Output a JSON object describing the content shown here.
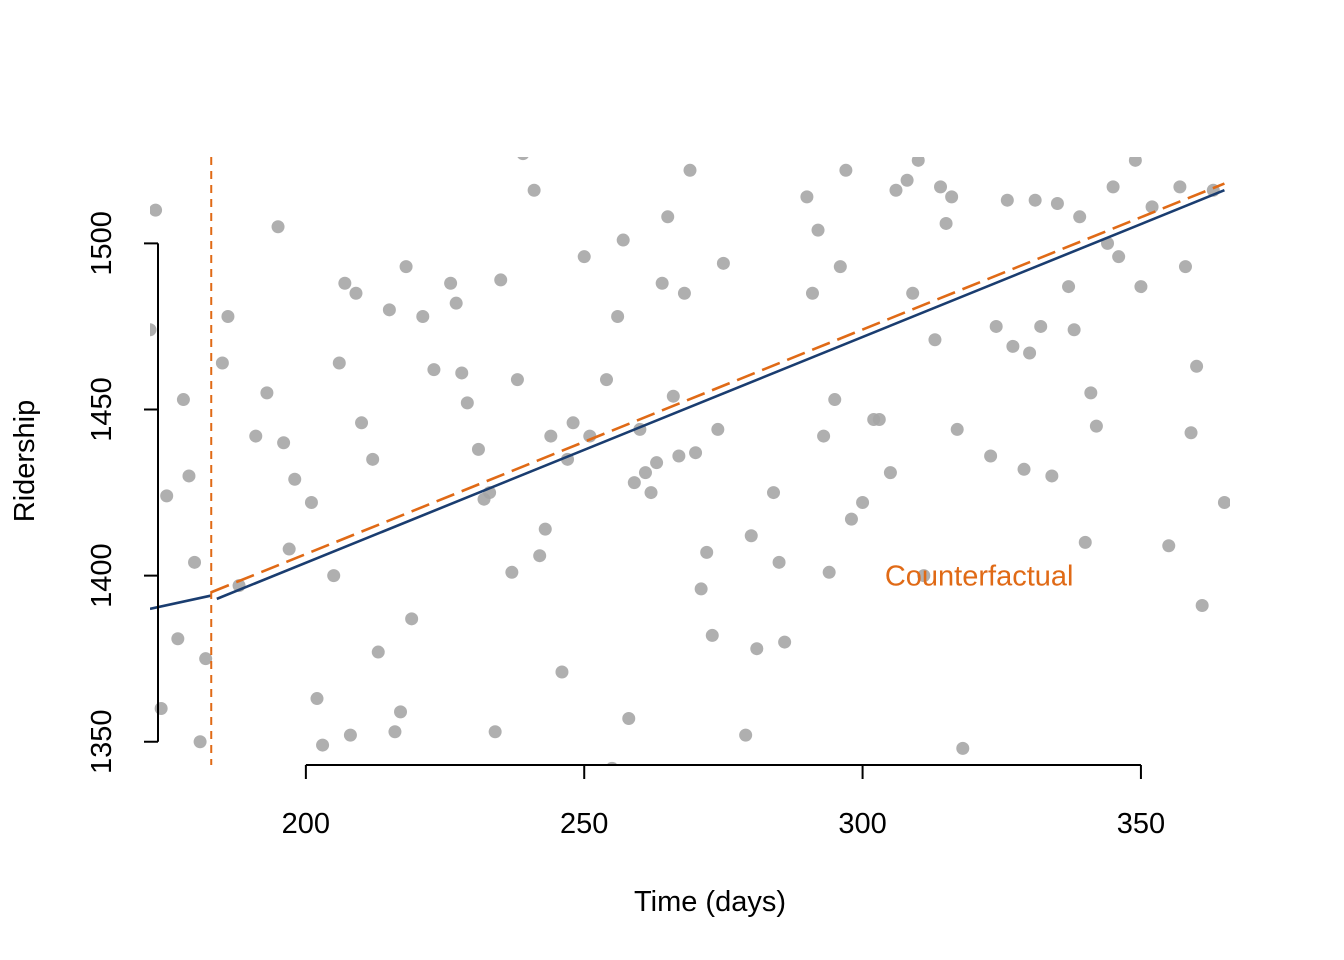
{
  "chart_data": {
    "type": "scatter",
    "title": "",
    "xlabel": "Time (days)",
    "ylabel": "Ridership",
    "xlim": [
      172,
      366
    ],
    "ylim": [
      1343,
      1526
    ],
    "x_ticks": [
      200,
      250,
      300,
      350
    ],
    "y_ticks": [
      1350,
      1400,
      1450,
      1500
    ],
    "grid": false,
    "legend": "none",
    "colors": {
      "points": "#a6a6a6",
      "fit_line": "#1a3d70",
      "counterfactual": "#e06a16"
    },
    "intervention_x": 183,
    "annotations": [
      {
        "text": "Counterfactual",
        "x": 304,
        "y": 1400
      }
    ],
    "lines": [
      {
        "style": "solid",
        "points": [
          [
            172,
            1390
          ],
          [
            183,
            1394
          ]
        ]
      },
      {
        "style": "solid",
        "points": [
          [
            184,
            1393
          ],
          [
            365,
            1516
          ]
        ]
      },
      {
        "style": "dashed",
        "points": [
          [
            183,
            1395
          ],
          [
            365,
            1518
          ]
        ]
      }
    ],
    "points": [
      [
        172,
        1474
      ],
      [
        173,
        1510
      ],
      [
        174,
        1360
      ],
      [
        175,
        1424
      ],
      [
        177,
        1381
      ],
      [
        178,
        1453
      ],
      [
        179,
        1430
      ],
      [
        180,
        1404
      ],
      [
        181,
        1350
      ],
      [
        182,
        1375
      ],
      [
        185,
        1464
      ],
      [
        186,
        1478
      ],
      [
        188,
        1397
      ],
      [
        191,
        1442
      ],
      [
        193,
        1455
      ],
      [
        195,
        1505
      ],
      [
        196,
        1440
      ],
      [
        197,
        1408
      ],
      [
        198,
        1429
      ],
      [
        201,
        1422
      ],
      [
        202,
        1363
      ],
      [
        203,
        1349
      ],
      [
        205,
        1400
      ],
      [
        206,
        1464
      ],
      [
        207,
        1488
      ],
      [
        208,
        1352
      ],
      [
        209,
        1485
      ],
      [
        210,
        1446
      ],
      [
        212,
        1435
      ],
      [
        213,
        1377
      ],
      [
        215,
        1480
      ],
      [
        216,
        1353
      ],
      [
        217,
        1359
      ],
      [
        218,
        1493
      ],
      [
        219,
        1387
      ],
      [
        221,
        1478
      ],
      [
        223,
        1462
      ],
      [
        226,
        1488
      ],
      [
        227,
        1482
      ],
      [
        228,
        1461
      ],
      [
        229,
        1452
      ],
      [
        231,
        1438
      ],
      [
        232,
        1423
      ],
      [
        233,
        1425
      ],
      [
        234,
        1353
      ],
      [
        235,
        1489
      ],
      [
        237,
        1401
      ],
      [
        238,
        1459
      ],
      [
        239,
        1527
      ],
      [
        241,
        1516
      ],
      [
        242,
        1406
      ],
      [
        243,
        1414
      ],
      [
        244,
        1442
      ],
      [
        246,
        1371
      ],
      [
        247,
        1435
      ],
      [
        248,
        1446
      ],
      [
        250,
        1496
      ],
      [
        251,
        1442
      ],
      [
        254,
        1459
      ],
      [
        255,
        1342
      ],
      [
        256,
        1478
      ],
      [
        257,
        1501
      ],
      [
        258,
        1357
      ],
      [
        259,
        1428
      ],
      [
        260,
        1444
      ],
      [
        261,
        1431
      ],
      [
        262,
        1425
      ],
      [
        263,
        1434
      ],
      [
        264,
        1488
      ],
      [
        265,
        1508
      ],
      [
        266,
        1454
      ],
      [
        267,
        1436
      ],
      [
        268,
        1485
      ],
      [
        269,
        1522
      ],
      [
        270,
        1437
      ],
      [
        271,
        1396
      ],
      [
        272,
        1407
      ],
      [
        273,
        1382
      ],
      [
        274,
        1444
      ],
      [
        275,
        1494
      ],
      [
        279,
        1352
      ],
      [
        280,
        1412
      ],
      [
        281,
        1378
      ],
      [
        284,
        1425
      ],
      [
        285,
        1404
      ],
      [
        286,
        1380
      ],
      [
        290,
        1514
      ],
      [
        291,
        1485
      ],
      [
        292,
        1504
      ],
      [
        293,
        1442
      ],
      [
        294,
        1401
      ],
      [
        295,
        1453
      ],
      [
        296,
        1493
      ],
      [
        297,
        1522
      ],
      [
        298,
        1417
      ],
      [
        300,
        1422
      ],
      [
        302,
        1447
      ],
      [
        303,
        1447
      ],
      [
        305,
        1431
      ],
      [
        306,
        1516
      ],
      [
        308,
        1519
      ],
      [
        309,
        1485
      ],
      [
        310,
        1525
      ],
      [
        311,
        1400
      ],
      [
        313,
        1471
      ],
      [
        314,
        1517
      ],
      [
        315,
        1506
      ],
      [
        316,
        1514
      ],
      [
        317,
        1444
      ],
      [
        318,
        1348
      ],
      [
        323,
        1436
      ],
      [
        324,
        1475
      ],
      [
        326,
        1513
      ],
      [
        327,
        1469
      ],
      [
        329,
        1432
      ],
      [
        330,
        1467
      ],
      [
        331,
        1513
      ],
      [
        332,
        1475
      ],
      [
        334,
        1430
      ],
      [
        335,
        1512
      ],
      [
        337,
        1487
      ],
      [
        338,
        1474
      ],
      [
        339,
        1508
      ],
      [
        340,
        1410
      ],
      [
        341,
        1455
      ],
      [
        342,
        1445
      ],
      [
        344,
        1500
      ],
      [
        345,
        1517
      ],
      [
        346,
        1496
      ],
      [
        349,
        1525
      ],
      [
        350,
        1487
      ],
      [
        352,
        1511
      ],
      [
        355,
        1409
      ],
      [
        357,
        1517
      ],
      [
        358,
        1493
      ],
      [
        359,
        1443
      ],
      [
        360,
        1463
      ],
      [
        361,
        1391
      ],
      [
        363,
        1516
      ],
      [
        365,
        1422
      ]
    ]
  }
}
